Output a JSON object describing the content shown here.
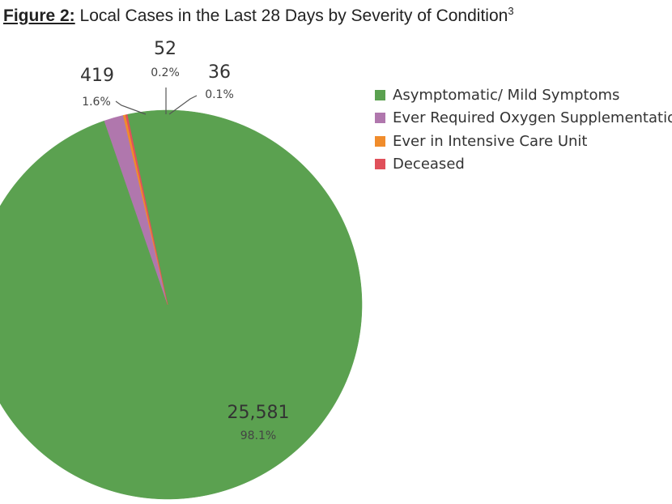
{
  "header": {
    "figure_label": "Figure 2:",
    "title": " Local Cases in the Last 28 Days by Severity of Condition",
    "footnote": "3"
  },
  "chart_data": {
    "type": "pie",
    "start_angle_deg": -12,
    "legend_placement": "right",
    "slices": [
      {
        "label": "Asymptomatic/ Mild Symptoms",
        "value": 25581,
        "value_text": "25,581",
        "percent_text": "98.1%",
        "color": "#5ba150"
      },
      {
        "label": "Ever Required Oxygen Supplementatio",
        "value": 419,
        "value_text": "419",
        "percent_text": "1.6%",
        "color": "#b077ad"
      },
      {
        "label": "Ever in Intensive Care Unit",
        "value": 52,
        "value_text": "52",
        "percent_text": "0.2%",
        "color": "#f08c2c"
      },
      {
        "label": "Deceased",
        "value": 36,
        "value_text": "36",
        "percent_text": "0.1%",
        "color": "#e0505a"
      }
    ]
  }
}
